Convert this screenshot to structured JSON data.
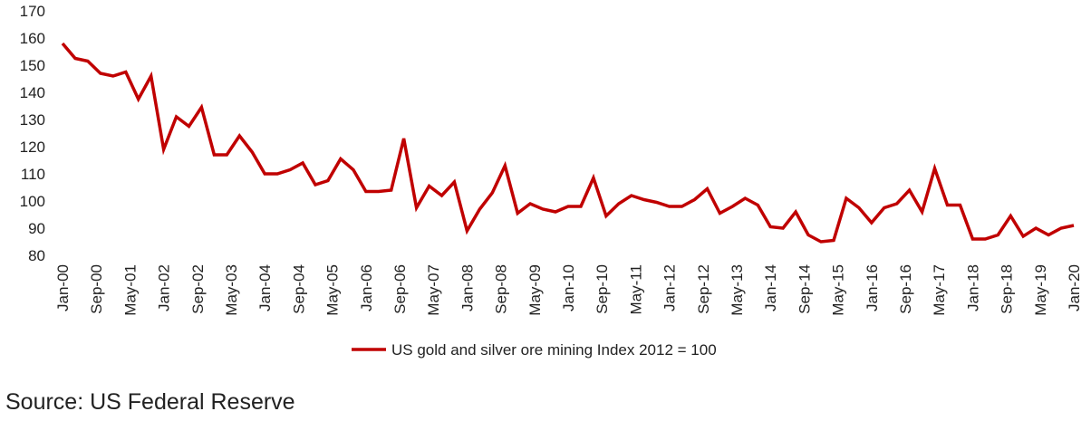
{
  "chart_data": {
    "type": "line",
    "title": "",
    "xlabel": "",
    "ylabel": "",
    "ylim": [
      80,
      170
    ],
    "yticks": [
      80,
      90,
      100,
      110,
      120,
      130,
      140,
      150,
      160,
      170
    ],
    "xtick_labels": [
      "Jan-00",
      "Sep-00",
      "May-01",
      "Jan-02",
      "Sep-02",
      "May-03",
      "Jan-04",
      "Sep-04",
      "May-05",
      "Jan-06",
      "Sep-06",
      "May-07",
      "Jan-08",
      "Sep-08",
      "May-09",
      "Jan-10",
      "Sep-10",
      "May-11",
      "Jan-12",
      "Sep-12",
      "May-13",
      "Jan-14",
      "Sep-14",
      "May-15",
      "Jan-16",
      "Sep-16",
      "May-17",
      "Jan-18",
      "Sep-18",
      "May-19",
      "Jan-20"
    ],
    "x_frequency": "quarterly, Jan-00 to Jan-20",
    "grid": false,
    "legend_position": "bottom",
    "series": [
      {
        "name": "US gold and silver ore mining Index 2012 = 100",
        "color": "#C00000",
        "values": [
          158,
          152.5,
          151.5,
          147,
          146,
          147.5,
          137.5,
          146,
          119,
          131,
          127.5,
          134.5,
          117,
          117,
          124,
          118,
          110,
          110,
          111.5,
          114,
          106,
          107.5,
          115.5,
          111.5,
          103.5,
          103.5,
          104,
          123,
          97.5,
          105.5,
          102,
          107,
          89,
          97,
          103,
          113,
          95.5,
          99,
          97,
          96,
          98,
          98,
          108.5,
          94.5,
          99,
          102,
          100.5,
          99.5,
          98,
          98,
          100.5,
          104.5,
          95.5,
          98,
          101,
          98.5,
          90.5,
          90,
          96,
          87.5,
          85,
          85.5,
          101,
          97.5,
          92,
          97.5,
          99,
          104,
          96,
          112,
          98.5,
          98.5,
          86,
          86,
          87.5,
          94.5,
          87,
          90,
          87.5,
          90,
          91
        ]
      }
    ]
  },
  "source": "Source: US Federal Reserve"
}
